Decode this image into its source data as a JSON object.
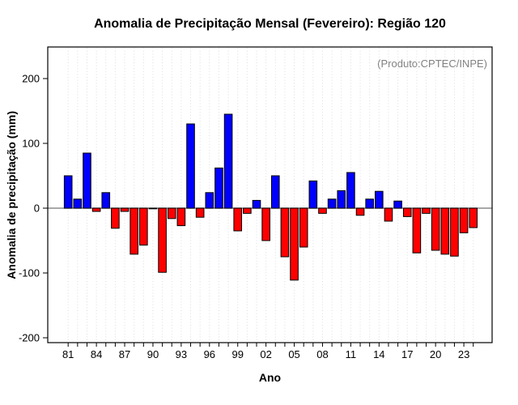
{
  "chart_data": {
    "type": "bar",
    "title": "Anomalia de Precipitação Mensal (Fevereiro): Região 120",
    "annotation": "(Produto:CPTEC/INPE)",
    "xlabel": "Ano",
    "ylabel": "Anomalia de precipitação (mm)",
    "years": [
      1981,
      1982,
      1983,
      1984,
      1985,
      1986,
      1987,
      1988,
      1989,
      1990,
      1991,
      1992,
      1993,
      1994,
      1995,
      1996,
      1997,
      1998,
      1999,
      2000,
      2001,
      2002,
      2003,
      2004,
      2005,
      2006,
      2007,
      2008,
      2009,
      2010,
      2011,
      2012,
      2013,
      2014,
      2015,
      2016,
      2017,
      2018,
      2019,
      2020,
      2021,
      2022,
      2023,
      2024
    ],
    "values": [
      50,
      14,
      85,
      -5,
      24,
      -31,
      -5,
      -71,
      -57,
      -1,
      -99,
      -16,
      -27,
      130,
      -14,
      24,
      62,
      145,
      -35,
      -8,
      12,
      -50,
      50,
      -75,
      -111,
      -60,
      42,
      -8,
      14,
      27,
      55,
      -11,
      14,
      26,
      -20,
      11,
      -13,
      -69,
      -8,
      -65,
      -71,
      -74,
      -38,
      -30
    ],
    "x_tick_labels": [
      "81",
      "84",
      "87",
      "90",
      "93",
      "96",
      "99",
      "02",
      "05",
      "08",
      "11",
      "14",
      "17",
      "20",
      "23"
    ],
    "x_tick_label_step": 3,
    "y_ticks": [
      200,
      100,
      0,
      -100,
      -200
    ],
    "ylim": [
      -207,
      249
    ],
    "grid": "vertical dotted line per year",
    "legend": "none",
    "colors": {
      "positive": "#0000ff",
      "negative": "#ff0000",
      "bar_border": "#000000",
      "zero_line": "#8c8c8c",
      "gridline": "#dcdcdc",
      "box_border": "#000000",
      "annotation_text": "#7f7f7f",
      "tick_text": "#000000"
    }
  }
}
